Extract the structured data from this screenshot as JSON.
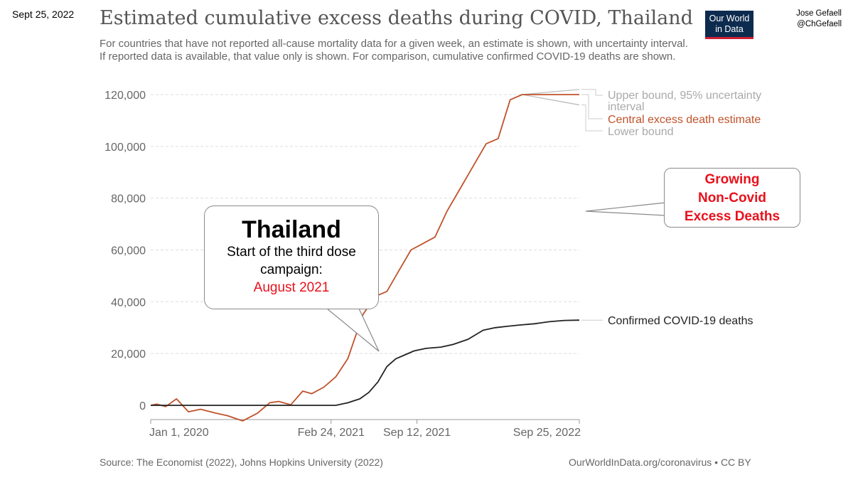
{
  "corner_date": "Sept 25, 2022",
  "author": {
    "name": "Jose Gefaell",
    "handle": "@ChGefaell"
  },
  "logo": {
    "line1": "Our World",
    "line2": "in Data"
  },
  "colors": {
    "central": "#c0522b",
    "bounds": "#bdbdbd",
    "confirmed": "#222222",
    "highlight": "#e8111c",
    "grid": "#dddddd"
  },
  "chart_data": {
    "type": "line",
    "title": "Estimated cumulative excess deaths during COVID, Thailand",
    "subtitle": "For countries that have not reported all-cause mortality data for a given week, an estimate is shown, with uncertainty interval. If reported data is available, that value only is shown. For comparison, cumulative confirmed COVID-19 deaths are shown.",
    "ylim": [
      0,
      120000
    ],
    "yticks": [
      0,
      20000,
      40000,
      60000,
      80000,
      100000,
      120000
    ],
    "ytick_labels": [
      "0",
      "20,000",
      "40,000",
      "60,000",
      "80,000",
      "100,000",
      "120,000"
    ],
    "xlim": [
      "2020-01-01",
      "2022-09-25"
    ],
    "xtick_labels": [
      "Jan 1, 2020",
      "Feb 24, 2021",
      "Sep 12, 2021",
      "Sep 25, 2022"
    ],
    "xtick_dates": [
      "2020-01-01",
      "2021-02-24",
      "2021-09-12",
      "2022-09-25"
    ],
    "series": [
      {
        "name": "Central excess death estimate",
        "x": [
          "2020-01-01",
          "2020-01-15",
          "2020-02-05",
          "2020-03-01",
          "2020-03-29",
          "2020-04-26",
          "2020-05-31",
          "2020-06-28",
          "2020-08-02",
          "2020-09-06",
          "2020-10-04",
          "2020-10-25",
          "2020-11-22",
          "2020-12-20",
          "2021-01-10",
          "2021-02-07",
          "2021-03-07",
          "2021-04-04",
          "2021-05-09",
          "2021-06-06",
          "2021-07-04",
          "2021-08-01",
          "2021-08-29",
          "2021-09-26",
          "2021-10-24",
          "2021-11-21",
          "2021-12-26",
          "2022-01-23",
          "2022-02-20",
          "2022-03-20",
          "2022-04-17",
          "2022-05-15",
          "2022-06-19",
          "2022-07-24",
          "2022-08-28",
          "2022-09-25"
        ],
        "values": [
          0,
          500,
          -500,
          2500,
          -2500,
          -1500,
          -3000,
          -4000,
          -6000,
          -3000,
          1000,
          1500,
          200,
          5500,
          4500,
          7000,
          11000,
          18000,
          35000,
          42000,
          44000,
          52000,
          60000,
          62500,
          65000,
          75000,
          85000,
          93000,
          101000,
          103000,
          118000,
          120000,
          120000,
          120000,
          120000,
          120000
        ]
      },
      {
        "name": "Confirmed COVID-19 deaths",
        "x": [
          "2020-01-01",
          "2021-01-10",
          "2021-03-07",
          "2021-04-04",
          "2021-05-02",
          "2021-05-23",
          "2021-06-13",
          "2021-07-04",
          "2021-07-25",
          "2021-08-15",
          "2021-09-05",
          "2021-10-03",
          "2021-11-07",
          "2021-12-05",
          "2022-01-09",
          "2022-02-13",
          "2022-03-13",
          "2022-04-10",
          "2022-05-08",
          "2022-06-12",
          "2022-07-17",
          "2022-08-21",
          "2022-09-25"
        ],
        "values": [
          0,
          0,
          0,
          1000,
          2500,
          5000,
          9000,
          15000,
          18000,
          19500,
          21000,
          22000,
          22500,
          23500,
          25500,
          29000,
          30000,
          30500,
          31000,
          31500,
          32300,
          32800,
          32900
        ]
      }
    ],
    "bounds": {
      "upper_end": 122000,
      "lower_end": 116000
    },
    "legend": {
      "upper": "Upper bound, 95% uncertainty interval",
      "central": "Central excess death estimate",
      "lower": "Lower bound",
      "confirmed": "Confirmed COVID-19 deaths"
    },
    "source": "Source: The Economist (2022), Johns Hopkins University (2022)",
    "credit": "OurWorldInData.org/coronavirus • CC BY"
  },
  "annotation": {
    "country": "Thailand",
    "line1": "Start of the third dose",
    "line2": "campaign:",
    "date": "August 2021"
  },
  "growing_box": {
    "line1": "Growing",
    "line2": "Non-Covid",
    "line3": "Excess Deaths"
  }
}
